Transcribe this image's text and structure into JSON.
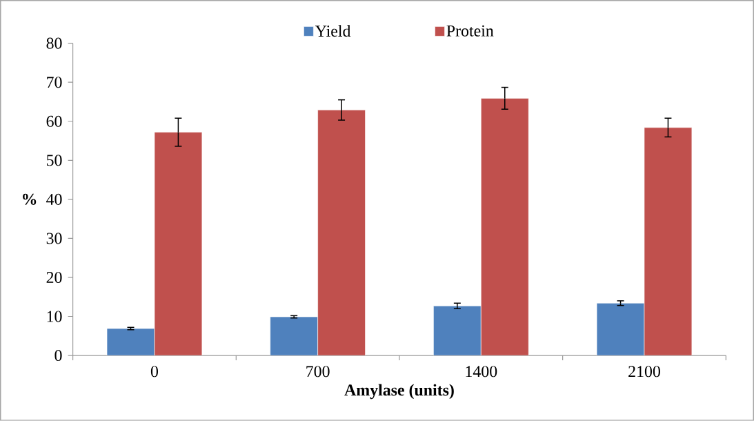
{
  "chart_data": {
    "type": "bar",
    "xlabel": "Amylase (units)",
    "ylabel": "%",
    "categories": [
      "0",
      "700",
      "1400",
      "2100"
    ],
    "series": [
      {
        "name": "Yield",
        "color": "#4f81bd",
        "values": [
          6.9,
          9.9,
          12.7,
          13.4
        ],
        "errors": [
          0.3,
          0.3,
          0.7,
          0.6
        ]
      },
      {
        "name": "Protein",
        "color": "#c0504d",
        "values": [
          57.2,
          62.9,
          65.9,
          58.4
        ],
        "errors": [
          3.6,
          2.6,
          2.8,
          2.4
        ]
      }
    ],
    "ylim": [
      0,
      80
    ],
    "yticks": [
      0,
      10,
      20,
      30,
      40,
      50,
      60,
      70,
      80
    ],
    "legend": "top",
    "grid": false
  }
}
